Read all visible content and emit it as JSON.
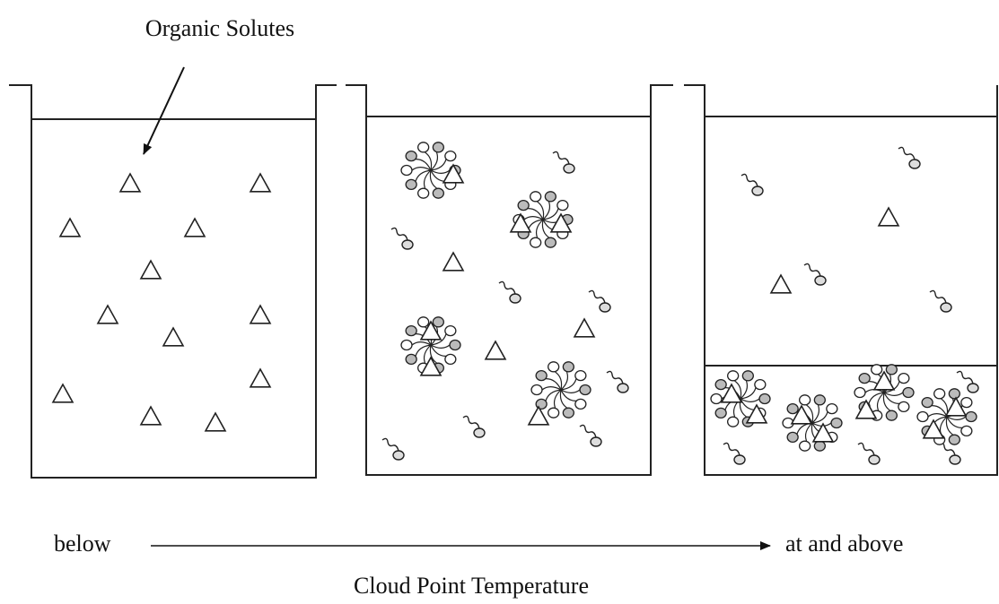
{
  "labels": {
    "solute": "Organic Solutes",
    "below": "below",
    "above": "at and above",
    "axis": "Cloud Point Temperature"
  }
}
